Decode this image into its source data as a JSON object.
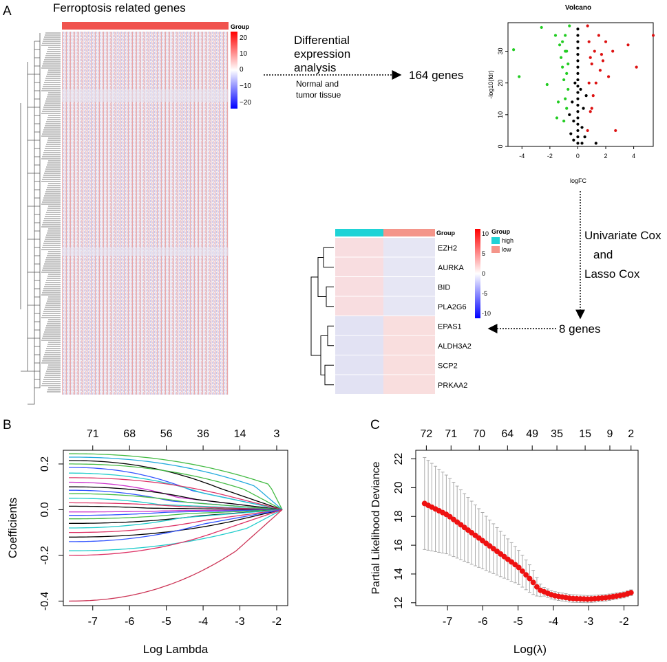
{
  "panels": {
    "a": "A",
    "b": "B",
    "c": "C"
  },
  "heatmap1": {
    "title": "Ferroptosis related genes",
    "group_label": "Group",
    "legend_ticks": [
      "20",
      "10",
      "0",
      "−10",
      "−20"
    ],
    "colors": {
      "high": "#ff0000",
      "mid": "#ffffff",
      "low": "#0000ff",
      "group_bar": "#f0534e"
    }
  },
  "flow": {
    "de_line1": "Differential",
    "de_line2": "expression",
    "de_line3": "analysis",
    "tissue_line1": "Normal and",
    "tissue_line2": "tumor tissue",
    "genes164": "164 genes",
    "cox_line1": "Univariate Cox",
    "cox_line2": "and",
    "cox_line3": "Lasso Cox",
    "genes8": "8 genes"
  },
  "heatmap2": {
    "group_label": "Group",
    "legend_group_title": "Group",
    "legend_high": "high",
    "legend_low": "low",
    "legend_ticks": [
      "10",
      "5",
      "0",
      "-5",
      "-10"
    ],
    "genes": [
      "EZH2",
      "AURKA",
      "BID",
      "PLA2G6",
      "EPAS1",
      "ALDH3A2",
      "SCP2",
      "PRKAA2"
    ],
    "colors": {
      "high": "#1fd3d6",
      "low": "#f4958a"
    }
  },
  "chart_data": [
    {
      "id": "volcano",
      "type": "scatter",
      "title": "Volcano",
      "xlabel": "logFC",
      "ylabel": "-log10(fdr)",
      "xlim": [
        -5,
        5.4
      ],
      "ylim": [
        0,
        39
      ],
      "xticks": [
        -4,
        -2,
        0,
        2,
        4
      ],
      "yticks": [
        0,
        10,
        20,
        30
      ],
      "series": [
        {
          "name": "down",
          "color": "#22cc22",
          "points": [
            [
              -4.6,
              30.5
            ],
            [
              -4.2,
              22
            ],
            [
              -2.6,
              37.5
            ],
            [
              -2.2,
              19.5
            ],
            [
              -1.6,
              35
            ],
            [
              -1.5,
              9
            ],
            [
              -1.3,
              32
            ],
            [
              -1.2,
              28
            ],
            [
              -1.1,
              25
            ],
            [
              -1.0,
              21
            ],
            [
              -0.9,
              15
            ],
            [
              -0.9,
              35
            ],
            [
              -0.8,
              12
            ],
            [
              -0.8,
              30
            ],
            [
              -0.7,
              26
            ],
            [
              -0.7,
              18
            ],
            [
              -1.1,
              33
            ],
            [
              -0.6,
              38
            ],
            [
              -1.4,
              14
            ],
            [
              -1.0,
              8
            ],
            [
              -0.8,
              23
            ],
            [
              -0.9,
              30
            ]
          ]
        },
        {
          "name": "up",
          "color": "#dd1111",
          "points": [
            [
              5.4,
              35
            ],
            [
              4.2,
              25
            ],
            [
              3.6,
              32
            ],
            [
              2.7,
              5
            ],
            [
              2.5,
              30
            ],
            [
              2.0,
              33
            ],
            [
              1.8,
              27
            ],
            [
              1.6,
              24
            ],
            [
              1.5,
              35
            ],
            [
              1.3,
              20
            ],
            [
              1.2,
              30
            ],
            [
              1.1,
              16
            ],
            [
              1.0,
              26
            ],
            [
              0.9,
              11
            ],
            [
              0.8,
              33
            ],
            [
              0.8,
              20
            ],
            [
              0.7,
              5
            ],
            [
              0.7,
              38
            ],
            [
              1.0,
              12
            ],
            [
              1.7,
              29
            ],
            [
              2.2,
              22
            ],
            [
              0.9,
              28
            ]
          ]
        },
        {
          "name": "ns",
          "color": "#000000",
          "points": [
            [
              0,
              37
            ],
            [
              0,
              35
            ],
            [
              0,
              33
            ],
            [
              0,
              31
            ],
            [
              0,
              29
            ],
            [
              0,
              27
            ],
            [
              0,
              25
            ],
            [
              0,
              23
            ],
            [
              0,
              21
            ],
            [
              0,
              19
            ],
            [
              0,
              17
            ],
            [
              0,
              15
            ],
            [
              0,
              13
            ],
            [
              0,
              11
            ],
            [
              0,
              9
            ],
            [
              0,
              7
            ],
            [
              0,
              5
            ],
            [
              0,
              3
            ],
            [
              0,
              1
            ],
            [
              -0.3,
              8
            ],
            [
              0.3,
              6
            ],
            [
              -0.4,
              14
            ],
            [
              0.4,
              12
            ],
            [
              -0.2,
              20
            ],
            [
              0.2,
              18
            ],
            [
              0.5,
              3
            ],
            [
              -0.5,
              4
            ],
            [
              -0.3,
              2
            ],
            [
              0.3,
              1
            ],
            [
              1.3,
              1
            ],
            [
              -0.6,
              10
            ],
            [
              0.6,
              16
            ]
          ]
        }
      ]
    },
    {
      "id": "lasso_coef",
      "type": "line",
      "title": "",
      "xlabel": "Log Lambda",
      "ylabel": "Coefficients",
      "xlim": [
        -7.8,
        -1.7
      ],
      "ylim": [
        -0.42,
        0.26
      ],
      "xticks": [
        -7,
        -6,
        -5,
        -4,
        -3,
        -2
      ],
      "yticks": [
        -0.4,
        -0.2,
        0.0,
        0.2
      ],
      "ytick_labels": [
        "-0.4",
        "-0.2",
        "0.0",
        "0.2"
      ],
      "top_axis": {
        "positions": [
          -7,
          -6,
          -5,
          -4,
          -3,
          -2
        ],
        "labels": [
          "71",
          "68",
          "56",
          "36",
          "14",
          "3"
        ]
      },
      "x_start": -7.65,
      "x_end": -1.85,
      "series": [
        {
          "start": 0.245,
          "shrink": -2.2,
          "color": "#44bb44"
        },
        {
          "start": 0.23,
          "shrink": -2.6,
          "color": "#22aadd"
        },
        {
          "start": 0.215,
          "shrink": -3.6,
          "color": "#000000"
        },
        {
          "start": 0.2,
          "shrink": -2.9,
          "color": "#44bb44"
        },
        {
          "start": 0.185,
          "shrink": -4.3,
          "color": "#3355ff"
        },
        {
          "start": 0.16,
          "shrink": -4.0,
          "color": "#22cccc"
        },
        {
          "start": 0.14,
          "shrink": -3.4,
          "color": "#dd3366"
        },
        {
          "start": 0.12,
          "shrink": -4.7,
          "color": "#cc33cc"
        },
        {
          "start": 0.1,
          "shrink": -4.2,
          "color": "#000000"
        },
        {
          "start": 0.085,
          "shrink": -4.9,
          "color": "#3355ff"
        },
        {
          "start": 0.07,
          "shrink": -4.4,
          "color": "#44bb44"
        },
        {
          "start": 0.05,
          "shrink": -5.2,
          "color": "#22cccc"
        },
        {
          "start": 0.03,
          "shrink": -4.6,
          "color": "#dd3366"
        },
        {
          "start": 0.015,
          "shrink": -5.5,
          "color": "#000000"
        },
        {
          "start": -0.01,
          "shrink": -4.8,
          "color": "#cc33cc"
        },
        {
          "start": -0.025,
          "shrink": -5.0,
          "color": "#3355ff"
        },
        {
          "start": -0.04,
          "shrink": -4.5,
          "color": "#44bb44"
        },
        {
          "start": -0.06,
          "shrink": -4.1,
          "color": "#000000"
        },
        {
          "start": -0.08,
          "shrink": -4.6,
          "color": "#22cccc"
        },
        {
          "start": -0.1,
          "shrink": -3.9,
          "color": "#dd3366"
        },
        {
          "start": -0.12,
          "shrink": -3.3,
          "color": "#000000"
        },
        {
          "start": -0.14,
          "shrink": -4.0,
          "color": "#3355ff"
        },
        {
          "start": -0.18,
          "shrink": -2.8,
          "color": "#22cccc"
        },
        {
          "start": -0.2,
          "shrink": -3.5,
          "color": "#dd3366"
        },
        {
          "start": -0.4,
          "shrink": -3.1,
          "color": "#cc3355"
        }
      ]
    },
    {
      "id": "cv_deviance",
      "type": "line",
      "title": "",
      "xlabel": "Log(λ)",
      "ylabel": "Partial Likelihood Deviance",
      "xlim": [
        -7.9,
        -1.6
      ],
      "ylim": [
        11.8,
        22.6
      ],
      "xticks": [
        -7,
        -6,
        -5,
        -4,
        -3,
        -2
      ],
      "yticks": [
        12,
        14,
        16,
        18,
        20,
        22
      ],
      "top_axis": {
        "positions": [
          -7.6,
          -6.9,
          -6.1,
          -5.3,
          -4.6,
          -3.9,
          -3.1,
          -2.4,
          -1.8
        ],
        "labels": [
          "72",
          "71",
          "70",
          "64",
          "49",
          "35",
          "15",
          "9",
          "2"
        ]
      },
      "x_start": -7.65,
      "x_end": -1.8,
      "n_points": 58,
      "keypoints": [
        [
          -7.65,
          18.9
        ],
        [
          -7.0,
          18.1
        ],
        [
          -6.5,
          17.2
        ],
        [
          -6.0,
          16.3
        ],
        [
          -5.5,
          15.4
        ],
        [
          -5.0,
          14.5
        ],
        [
          -4.6,
          13.5
        ],
        [
          -4.4,
          12.9
        ],
        [
          -4.0,
          12.5
        ],
        [
          -3.5,
          12.3
        ],
        [
          -3.0,
          12.25
        ],
        [
          -2.5,
          12.35
        ],
        [
          -2.0,
          12.55
        ],
        [
          -1.8,
          12.7
        ]
      ],
      "ci_halfwidth": [
        [
          -7.65,
          3.2
        ],
        [
          -4.6,
          0.9
        ],
        [
          -4.3,
          0.3
        ],
        [
          -1.8,
          0.2
        ]
      ],
      "point_color": "#ee1111",
      "bar_color": "#aaaaaa"
    }
  ]
}
